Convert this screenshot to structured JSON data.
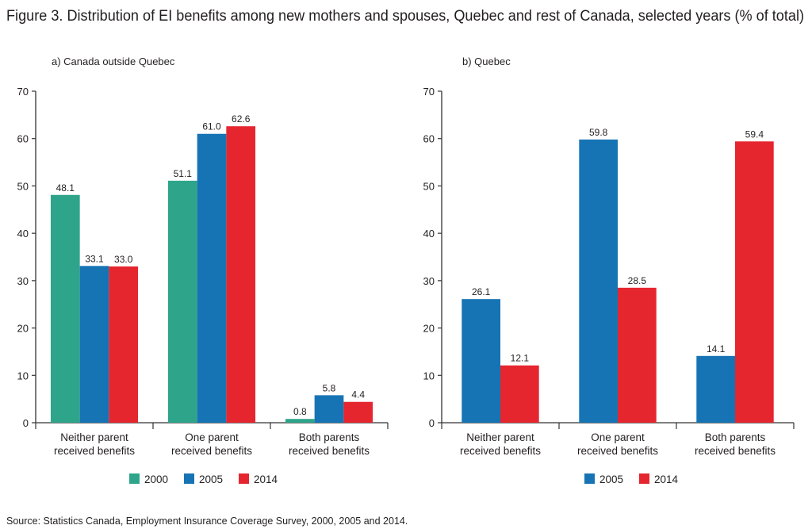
{
  "title": "Figure 3. Distribution of EI benefits among new mothers and spouses, Quebec and rest of Canada, selected years (% of total)",
  "source": "Source: Statistics Canada, Employment Insurance Coverage Survey, 2000, 2005 and 2014.",
  "colors": {
    "2000": "#2ea58a",
    "2005": "#1674b5",
    "2014": "#e5262f"
  },
  "chart_data": [
    {
      "type": "bar",
      "title": "a) Canada outside Quebec",
      "categories": [
        "Neither parent|received benefits",
        "One parent|received benefits",
        "Both parents|received benefits"
      ],
      "series": [
        {
          "name": "2000",
          "values": [
            48.1,
            51.1,
            0.8
          ],
          "labels": [
            "48.1",
            "51.1",
            "0.8"
          ]
        },
        {
          "name": "2005",
          "values": [
            33.1,
            61.0,
            5.8
          ],
          "labels": [
            "33.1",
            "61.0",
            "5.8"
          ]
        },
        {
          "name": "2014",
          "values": [
            33.0,
            62.6,
            4.4
          ],
          "labels": [
            "33.0",
            "62.6",
            "4.4"
          ]
        }
      ],
      "ylim": [
        0,
        70
      ],
      "yticks": [
        "0",
        "10",
        "20",
        "30",
        "40",
        "50",
        "60",
        "70"
      ],
      "grid": false,
      "legend": "bottom"
    },
    {
      "type": "bar",
      "title": "b) Quebec",
      "categories": [
        "Neither parent|received benefits",
        "One parent|received benefits",
        "Both parents|received benefits"
      ],
      "series": [
        {
          "name": "2005",
          "values": [
            26.1,
            59.8,
            14.1
          ],
          "labels": [
            "26.1",
            "59.8",
            "14.1"
          ]
        },
        {
          "name": "2014",
          "values": [
            12.1,
            28.5,
            59.4
          ],
          "labels": [
            "12.1",
            "28.5",
            "59.4"
          ]
        }
      ],
      "ylim": [
        0,
        70
      ],
      "yticks": [
        "0",
        "10",
        "20",
        "30",
        "40",
        "50",
        "60",
        "70"
      ],
      "grid": false,
      "legend": "bottom"
    }
  ]
}
